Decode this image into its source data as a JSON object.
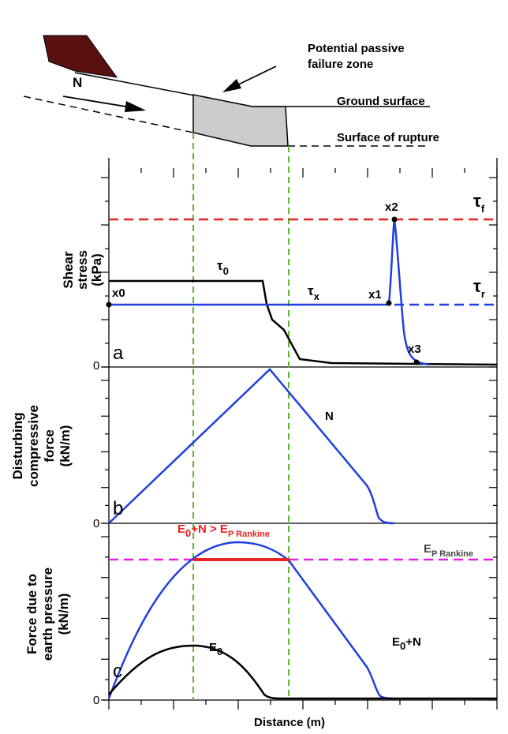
{
  "schematic": {
    "force_label": "N",
    "zone_label": [
      "Potential passive",
      "failure zone"
    ],
    "ground_label": "Ground surface",
    "rupture_label": "Surface of rupture"
  },
  "panels": [
    {
      "letter": "a",
      "zero": "0",
      "ylabel": [
        "Shear",
        "stress",
        "(kPa)"
      ],
      "curve_labels": {
        "tau0": {
          "base": "τ",
          "sub": "0"
        },
        "taux": {
          "base": "τ",
          "sub": "x"
        },
        "tauf": {
          "base": "τ",
          "sub": "f"
        },
        "taur": {
          "base": "τ",
          "sub": "r"
        }
      },
      "points": [
        "x0",
        "x1",
        "x2",
        "x3"
      ]
    },
    {
      "letter": "b",
      "zero": "0",
      "ylabel": [
        "Disturbing",
        "compressive",
        "force",
        "(kN/m)"
      ],
      "curve_label": "N"
    },
    {
      "letter": "c",
      "zero": "0",
      "ylabel": [
        "Force due to",
        "earth pressure",
        "(kN/m)"
      ],
      "condition": [
        "E",
        "0",
        "+N > E",
        "P Rankine"
      ],
      "rankine": [
        "E",
        "P Rankine"
      ],
      "sum": [
        "E",
        "0",
        "+N"
      ],
      "e0": [
        "E",
        "0"
      ]
    }
  ],
  "xlabel": "Distance (m)"
}
